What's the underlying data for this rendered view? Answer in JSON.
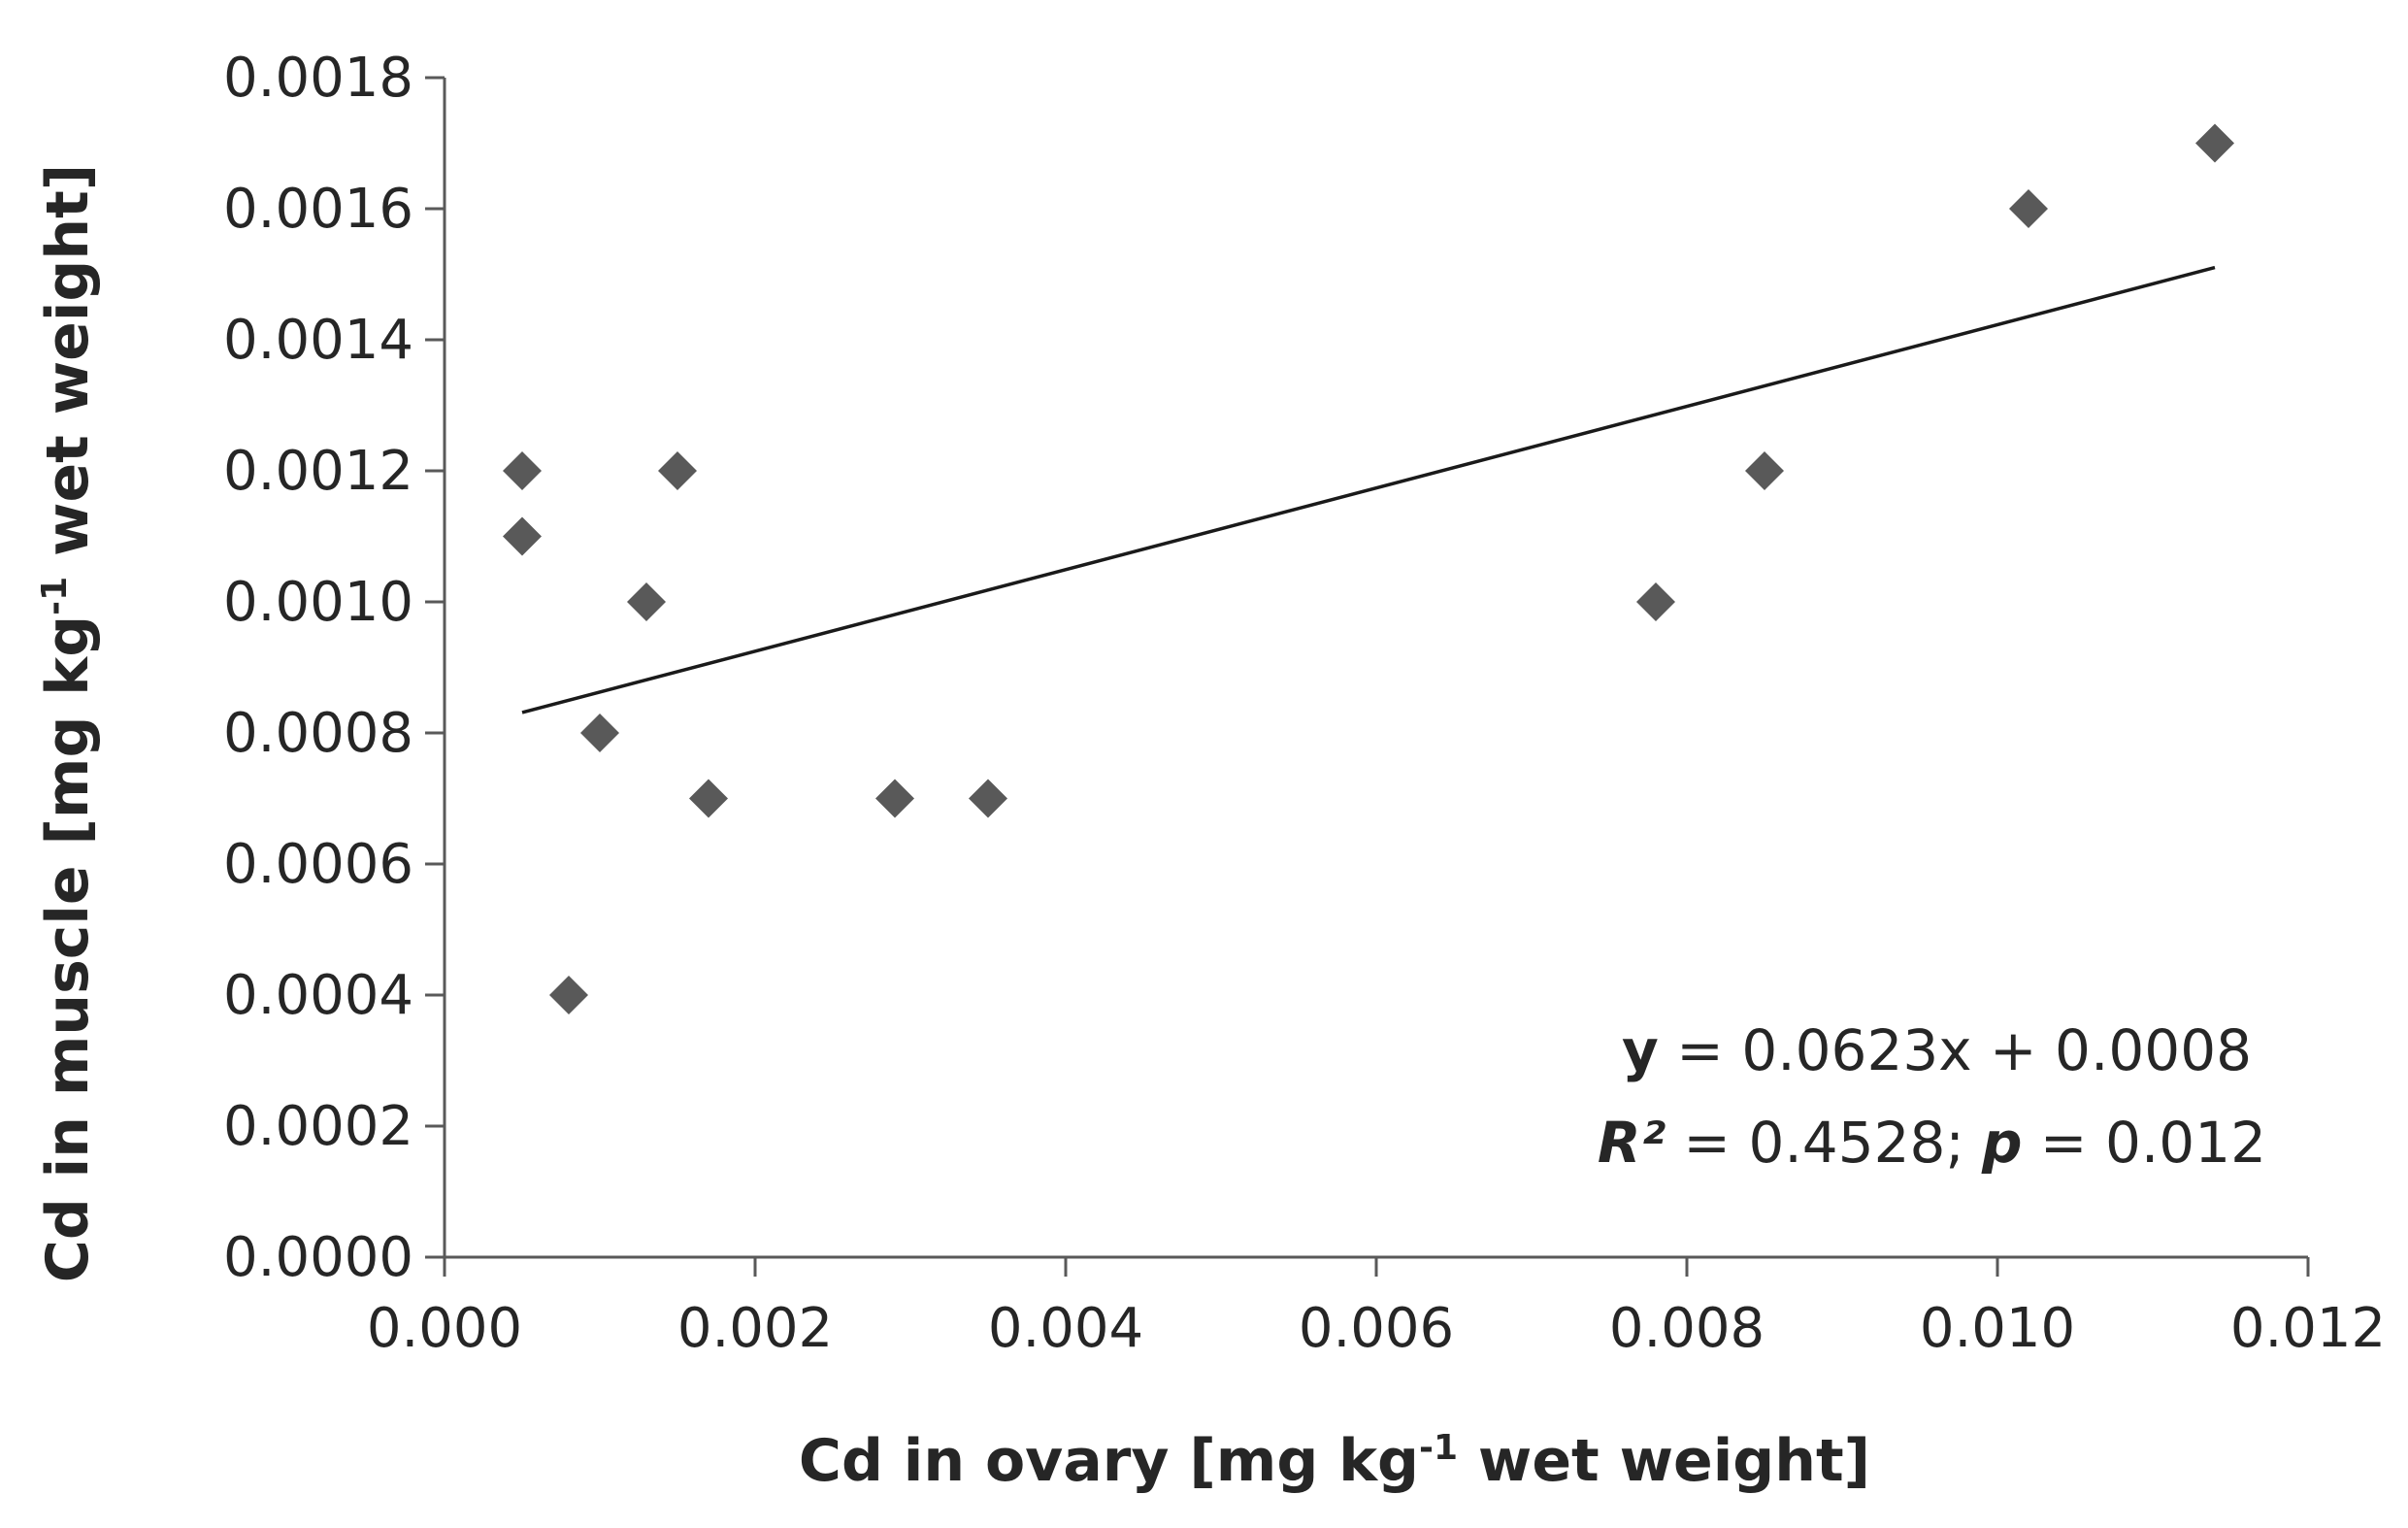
{
  "chart_data": {
    "type": "scatter",
    "title": "",
    "xlabel": "Cd in ovary [mg kg-1 wet weight]",
    "ylabel": "Cd in muscle [mg kg-1 wet weight]",
    "xlabel_parts": {
      "pre": "Cd in ovary [mg kg",
      "sup": "-1",
      "post": " wet weight]"
    },
    "ylabel_parts": {
      "pre": "Cd in muscle [mg kg",
      "sup": "-1",
      "post": " wet weight]"
    },
    "xlim": [
      0,
      0.012
    ],
    "ylim": [
      0,
      0.0018
    ],
    "xticks": [
      "0.000",
      "0.002",
      "0.004",
      "0.006",
      "0.008",
      "0.010",
      "0.012"
    ],
    "yticks": [
      "0.0000",
      "0.0002",
      "0.0004",
      "0.0006",
      "0.0008",
      "0.0010",
      "0.0012",
      "0.0014",
      "0.0016",
      "0.0018"
    ],
    "grid": false,
    "marker": "diamond",
    "marker_color": "#595959",
    "series": [
      {
        "name": "Cd",
        "points": [
          {
            "x": 0.0005,
            "y": 0.0012
          },
          {
            "x": 0.0005,
            "y": 0.0011
          },
          {
            "x": 0.0008,
            "y": 0.0004
          },
          {
            "x": 0.001,
            "y": 0.0008
          },
          {
            "x": 0.0013,
            "y": 0.001
          },
          {
            "x": 0.0015,
            "y": 0.0012
          },
          {
            "x": 0.0017,
            "y": 0.0007
          },
          {
            "x": 0.0029,
            "y": 0.0007
          },
          {
            "x": 0.0035,
            "y": 0.0007
          },
          {
            "x": 0.0078,
            "y": 0.001
          },
          {
            "x": 0.0085,
            "y": 0.0012
          },
          {
            "x": 0.0102,
            "y": 0.0016
          },
          {
            "x": 0.0114,
            "y": 0.0017
          }
        ]
      }
    ],
    "trendline": {
      "slope": 0.0623,
      "intercept": 0.0008,
      "x_start": 0.0005,
      "x_end": 0.0114,
      "color": "#1a1a1a"
    },
    "annotations": {
      "equation": {
        "var": "y",
        "text": " = 0.0623x + 0.0008"
      },
      "stats": {
        "r_label": "R²",
        "r_value": " = 0.4528;",
        "p_label": "p",
        "p_value": " = 0.012"
      }
    }
  }
}
